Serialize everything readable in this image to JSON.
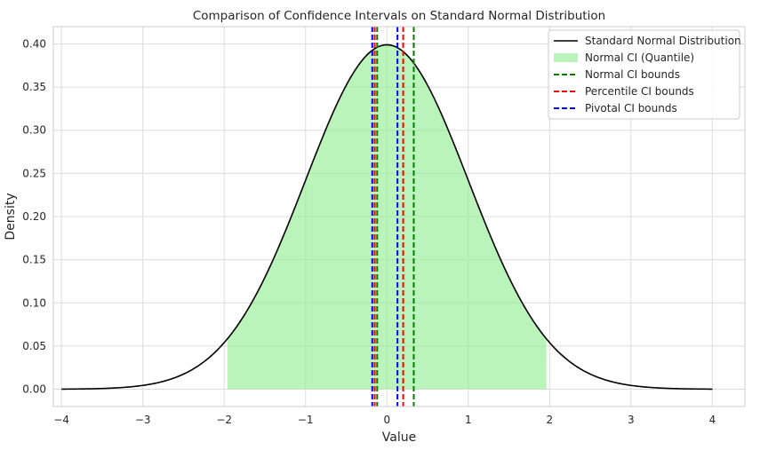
{
  "chart_data": {
    "type": "line",
    "title": "Comparison of Confidence Intervals on Standard Normal Distribution",
    "xlabel": "Value",
    "ylabel": "Density",
    "xlim": [
      -4.1,
      4.4
    ],
    "ylim": [
      -0.02,
      0.42
    ],
    "x_ticks": [
      -4,
      -3,
      -2,
      -1,
      0,
      1,
      2,
      3,
      4
    ],
    "x_tick_labels": [
      "−4",
      "−3",
      "−2",
      "−1",
      "0",
      "1",
      "2",
      "3",
      "4"
    ],
    "y_ticks": [
      0.0,
      0.05,
      0.1,
      0.15,
      0.2,
      0.25,
      0.3,
      0.35,
      0.4
    ],
    "y_tick_labels": [
      "0.00",
      "0.05",
      "0.10",
      "0.15",
      "0.20",
      "0.25",
      "0.30",
      "0.35",
      "0.40"
    ],
    "grid": true,
    "legend_position": "top-right",
    "curve": {
      "name": "Standard Normal Distribution",
      "function": "standard normal pdf",
      "x_range": [
        -4,
        4
      ],
      "color": "#000000"
    },
    "shaded_region": {
      "name": "Normal CI (Quantile)",
      "x_range": [
        -1.96,
        1.96
      ],
      "color": "#90ee90"
    },
    "vlines": [
      {
        "name": "Normal CI bounds",
        "color": "#008000",
        "values": [
          -0.12,
          0.33
        ]
      },
      {
        "name": "Percentile CI bounds",
        "color": "#ff0000",
        "values": [
          -0.15,
          0.2
        ]
      },
      {
        "name": "Pivotal CI bounds",
        "color": "#0000ff",
        "values": [
          -0.18,
          0.13
        ]
      }
    ],
    "legend": [
      {
        "label": "Standard Normal Distribution",
        "kind": "line",
        "color": "#000000"
      },
      {
        "label": "Normal CI (Quantile)",
        "kind": "patch",
        "color": "#90ee90"
      },
      {
        "label": "Normal CI bounds",
        "kind": "dashed",
        "color": "#008000"
      },
      {
        "label": "Percentile CI bounds",
        "kind": "dashed",
        "color": "#ff0000"
      },
      {
        "label": "Pivotal CI bounds",
        "kind": "dashed",
        "color": "#0000ff"
      }
    ]
  }
}
